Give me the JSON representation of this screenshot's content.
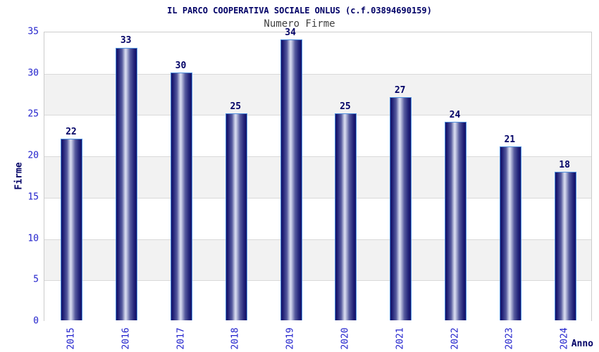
{
  "chart_data": {
    "type": "bar",
    "title": "IL PARCO COOPERATIVA SOCIALE ONLUS (c.f.03894690159)",
    "subtitle": "Numero Firme",
    "xlabel": "Anno",
    "ylabel": "Firme",
    "categories": [
      "2015",
      "2016",
      "2017",
      "2018",
      "2019",
      "2020",
      "2021",
      "2022",
      "2023",
      "2024"
    ],
    "values": [
      22,
      33,
      30,
      25,
      34,
      25,
      27,
      24,
      21,
      18
    ],
    "ylim": [
      0,
      35
    ],
    "ytick_step": 5,
    "yticks": [
      "0",
      "5",
      "10",
      "15",
      "20",
      "25",
      "30",
      "35"
    ],
    "grid": "horizontal-bands-alternating",
    "legend": "none",
    "colors": {
      "title": "#000066",
      "subtitle": "#404040",
      "tick_label": "#2222cc",
      "value_label": "#000066",
      "axis_label": "#000066",
      "bar_dark": "#14146a",
      "bar_mid": "#555a9e",
      "bar_light": "#d8dcf0",
      "bar_border": "#4e8fde",
      "band_white": "#ffffff",
      "band_gray": "#f2f2f2",
      "gridline": "#d9d9d9",
      "plot_border": "#cccccc",
      "background": "#ffffff"
    }
  }
}
